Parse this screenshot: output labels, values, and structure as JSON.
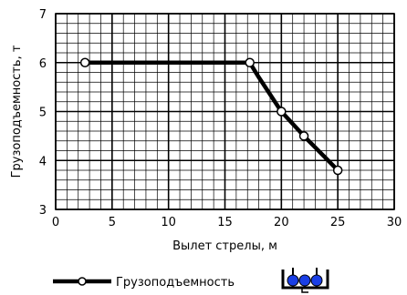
{
  "chart_data": {
    "type": "line",
    "title": "",
    "xlabel": "Вылет стрелы, м",
    "ylabel": "Грузоподъемность, т",
    "xlim": [
      0,
      30
    ],
    "ylim": [
      3,
      7
    ],
    "grid": true,
    "x_major_ticks": [
      0,
      5,
      10,
      15,
      20,
      25,
      30
    ],
    "y_major_ticks": [
      3,
      4,
      5,
      6,
      7
    ],
    "x_minor_step": 1,
    "y_minor_step": 0.2,
    "series": [
      {
        "name": "Грузоподъемность",
        "color": "#000000",
        "x": [
          2.6,
          17.2,
          18.0,
          19.0,
          20.0,
          22.0,
          25.0
        ],
        "y": [
          6.0,
          6.0,
          5.7,
          5.35,
          5.0,
          4.5,
          3.8
        ],
        "markers": [
          2.6,
          17.2,
          20.0,
          22.0,
          25.0
        ]
      }
    ],
    "legend": {
      "position": "bottom",
      "icon": "bucket-icon",
      "icon_colors": [
        "#0a2fe0",
        "#000000"
      ]
    }
  }
}
